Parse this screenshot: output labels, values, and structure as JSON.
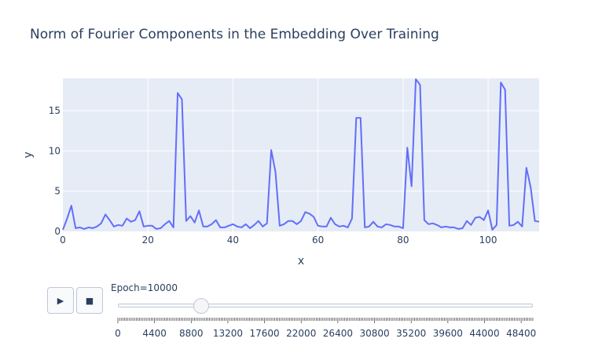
{
  "chart_data": {
    "type": "line",
    "title": "Norm of Fourier Components in the Embedding Over Training",
    "xlabel": "x",
    "ylabel": "y",
    "xlim": [
      0,
      112
    ],
    "ylim": [
      0,
      19
    ],
    "xticks": [
      0,
      20,
      40,
      60,
      80,
      100
    ],
    "yticks": [
      0,
      5,
      10,
      15
    ],
    "grid": true,
    "series": [
      {
        "color": "#636efa",
        "x": [
          0,
          1,
          2,
          3,
          4,
          5,
          6,
          7,
          8,
          9,
          10,
          11,
          12,
          13,
          14,
          15,
          16,
          17,
          18,
          19,
          20,
          21,
          22,
          23,
          24,
          25,
          26,
          27,
          28,
          29,
          30,
          31,
          32,
          33,
          34,
          35,
          36,
          37,
          38,
          39,
          40,
          41,
          42,
          43,
          44,
          45,
          46,
          47,
          48,
          49,
          50,
          51,
          52,
          53,
          54,
          55,
          56,
          57,
          58,
          59,
          60,
          61,
          62,
          63,
          64,
          65,
          66,
          67,
          68,
          69,
          70,
          71,
          72,
          73,
          74,
          75,
          76,
          77,
          78,
          79,
          80,
          81,
          82,
          83,
          84,
          85,
          86,
          87,
          88,
          89,
          90,
          91,
          92,
          93,
          94,
          95,
          96,
          97,
          98,
          99,
          100,
          101,
          102,
          103,
          104,
          105,
          106,
          107,
          108,
          109,
          110,
          111,
          112
        ],
        "values": [
          0.2,
          1.6,
          3.2,
          0.4,
          0.5,
          0.3,
          0.5,
          0.4,
          0.6,
          1.0,
          2.1,
          1.4,
          0.6,
          0.8,
          0.7,
          1.6,
          1.2,
          1.4,
          2.5,
          0.6,
          0.7,
          0.7,
          0.3,
          0.4,
          0.9,
          1.3,
          0.5,
          17.2,
          16.4,
          1.3,
          1.9,
          1.1,
          2.6,
          0.6,
          0.6,
          0.9,
          1.4,
          0.5,
          0.5,
          0.7,
          0.9,
          0.6,
          0.5,
          0.9,
          0.4,
          0.8,
          1.3,
          0.6,
          1.0,
          10.1,
          7.4,
          0.7,
          0.9,
          1.3,
          1.3,
          0.9,
          1.3,
          2.4,
          2.2,
          1.8,
          0.7,
          0.6,
          0.6,
          1.7,
          0.9,
          0.6,
          0.7,
          0.5,
          1.6,
          14.1,
          14.1,
          0.5,
          0.6,
          1.2,
          0.6,
          0.5,
          0.9,
          0.8,
          0.6,
          0.6,
          0.4,
          10.4,
          5.6,
          18.9,
          18.2,
          1.4,
          0.9,
          1.0,
          0.8,
          0.5,
          0.6,
          0.5,
          0.5,
          0.3,
          0.4,
          1.3,
          0.8,
          1.7,
          1.8,
          1.4,
          2.6,
          0.2,
          0.8,
          18.5,
          17.6,
          0.7,
          0.8,
          1.2,
          0.6,
          7.9,
          5.5,
          1.3,
          1.2
        ]
      }
    ]
  },
  "slider": {
    "label": "Epoch=10000",
    "value": 10000,
    "min": 0,
    "max": 49800,
    "tick_labels": [
      "0",
      "4400",
      "8800",
      "13200",
      "17600",
      "22000",
      "26400",
      "30800",
      "35200",
      "39600",
      "44000",
      "48400"
    ],
    "tick_values": [
      0,
      4400,
      8800,
      13200,
      17600,
      22000,
      26400,
      30800,
      35200,
      39600,
      44000,
      48400
    ]
  },
  "buttons": {
    "play_icon": "▶",
    "stop_icon": "■"
  }
}
